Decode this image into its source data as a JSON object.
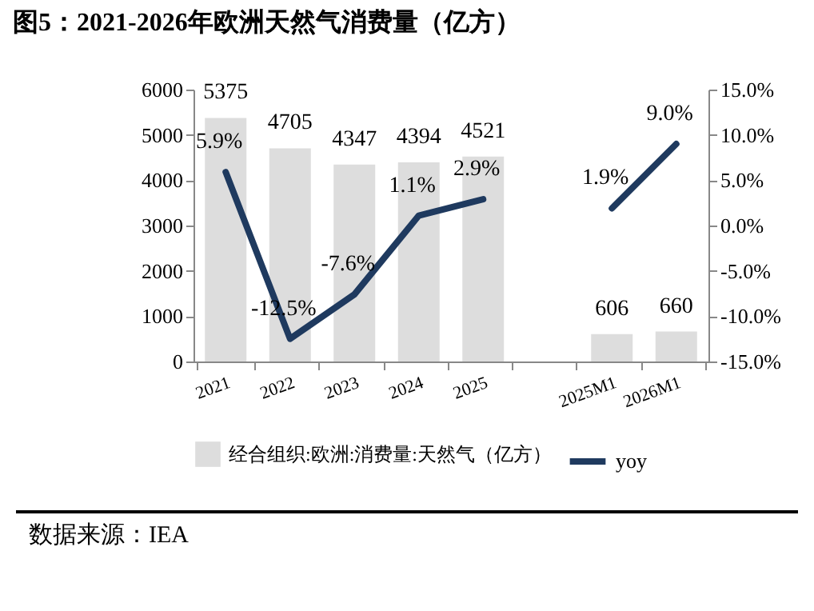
{
  "chart_data": {
    "type": "bar",
    "title": "图5：2021-2026年欧洲天然气消费量（亿方）",
    "categories": [
      "2021",
      "2022",
      "2023",
      "2024",
      "2025",
      null,
      "2025M1",
      "2026M1"
    ],
    "series": [
      {
        "name": "经合组织:欧洲:消费量:天然气（亿方）",
        "color": "#dddddd",
        "values": [
          5375,
          4705,
          4347,
          4394,
          4521,
          null,
          606,
          660
        ],
        "data_labels": true
      },
      {
        "name": "yoy",
        "type": "line",
        "axis": "y2",
        "color": "#1f3a5f",
        "values": [
          5.9,
          -12.5,
          -7.6,
          1.1,
          2.9,
          null,
          1.9,
          9.0
        ],
        "value_labels": [
          "5.9%",
          "-12.5%",
          "-7.6%",
          "1.1%",
          "2.9%",
          null,
          "1.9%",
          "9.0%"
        ]
      }
    ],
    "ylim": [
      0,
      6000
    ],
    "yticks": [
      0,
      1000,
      2000,
      3000,
      4000,
      5000,
      6000
    ],
    "y2lim": [
      -15,
      15
    ],
    "y2ticks": [
      {
        "value": -15,
        "label": "-15.0%"
      },
      {
        "value": -10,
        "label": "-10.0%"
      },
      {
        "value": -5,
        "label": "-5.0%"
      },
      {
        "value": 0,
        "label": "0.0%"
      },
      {
        "value": 5,
        "label": "5.0%"
      },
      {
        "value": 10,
        "label": "10.0%"
      },
      {
        "value": 15,
        "label": "15.0%"
      }
    ],
    "grid": false,
    "legend": "bottom",
    "marker": "none",
    "line_style": "solid",
    "annotations": [
      "数据来源：IEA"
    ]
  }
}
